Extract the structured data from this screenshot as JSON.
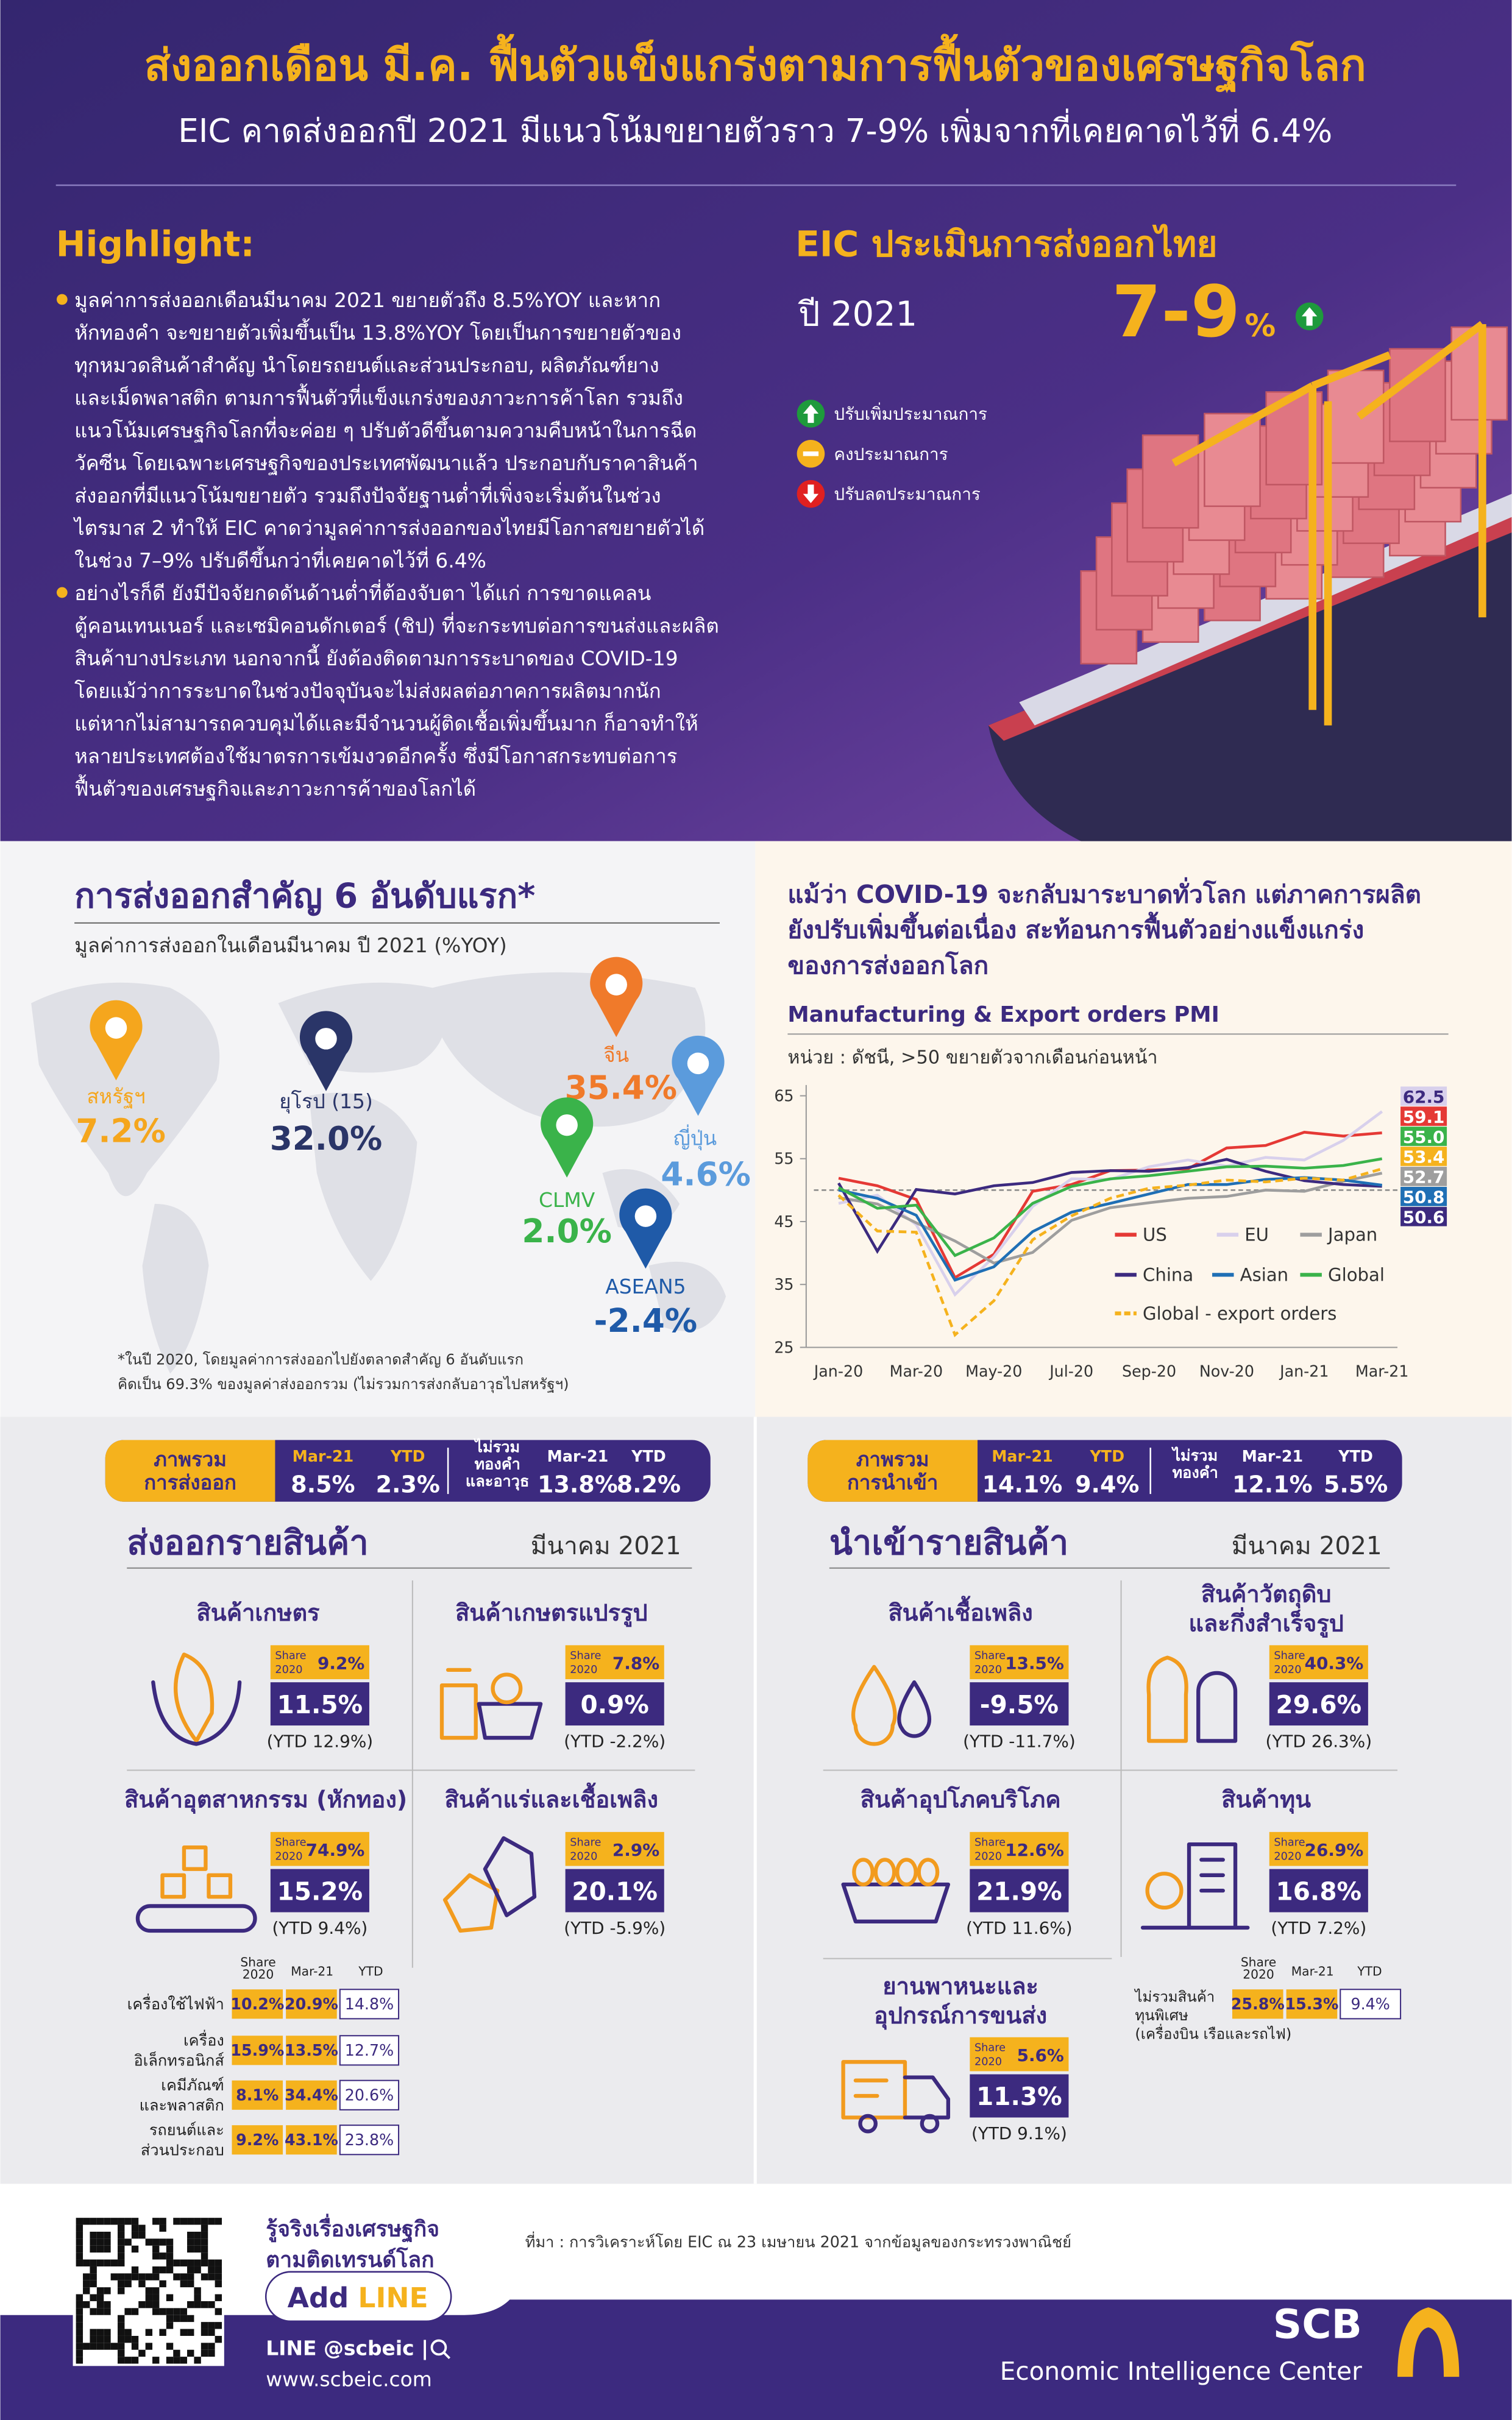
{
  "header": {
    "title": "ส่งออกเดือน มี.ค. ฟื้นตัวแข็งแกร่งตามการฟื้นตัวของเศรษฐกิจโลก",
    "subtitle": "EIC คาดส่งออกปี 2021 มีแนวโน้มขยายตัวราว 7-9% เพิ่มจากที่เคยคาดไว้ที่ 6.4%"
  },
  "highlight": {
    "heading": "Highlight:",
    "bullets": [
      [
        "มูลค่าการส่งออกเดือนมีนาคม 2021 ขยายตัวถึง 8.5%YOY และหาก",
        "หักทองคำ จะขยายตัวเพิ่มขึ้นเป็น 13.8%YOY โดยเป็นการขยายตัวของ",
        "ทุกหมวดสินค้าสำคัญ นำโดยรถยนต์และส่วนประกอบ, ผลิตภัณฑ์ยาง",
        "และเม็ดพลาสติก ตามการฟื้นตัวที่แข็งแกร่งของภาวะการค้าโลก รวมถึง",
        "แนวโน้มเศรษฐกิจโลกที่จะค่อย ๆ ปรับตัวดีขึ้นตามความคืบหน้าในการฉีด",
        "วัคซีน โดยเฉพาะเศรษฐกิจของประเทศพัฒนาแล้ว ประกอบกับราคาสินค้า",
        "ส่งออกที่มีแนวโน้มขยายตัว รวมถึงปัจจัยฐานต่ำที่เพิ่งจะเริ่มต้นในช่วง",
        "ไตรมาส 2 ทำให้ EIC คาดว่ามูลค่าการส่งออกของไทยมีโอกาสขยายตัวได้",
        "ในช่วง 7–9% ปรับดีขึ้นกว่าที่เคยคาดไว้ที่ 6.4%"
      ],
      [
        "อย่างไรก็ดี ยังมีปัจจัยกดดันด้านต่ำที่ต้องจับตา ได้แก่ การขาดแคลน",
        "ตู้คอนเทนเนอร์ และเซมิคอนดักเตอร์ (ชิป) ที่จะกระทบต่อการขนส่งและผลิต",
        "สินค้าบางประเภท นอกจากนี้ ยังต้องติดตามการระบาดของ COVID-19",
        "โดยแม้ว่าการระบาดในช่วงปัจจุบันจะไม่ส่งผลต่อภาคการผลิตมากนัก",
        "แต่หากไม่สามารถควบคุมได้และมีจำนวนผู้ติดเชื้อเพิ่มขึ้นมาก ก็อาจทำให้",
        "หลายประเทศต้องใช้มาตรการเข้มงวดอีกครั้ง ซึ่งมีโอกาสกระทบต่อการ",
        "ฟื้นตัวของเศรษฐกิจและภาวะการค้าของโลกได้"
      ]
    ]
  },
  "assessment": {
    "heading": "EIC ประเมินการส่งออกไทย",
    "year": "ปี 2021",
    "range": "7-9",
    "unit": "%",
    "legend": [
      "ปรับเพิ่มประมาณการ",
      "คงประมาณการ",
      "ปรับลดประมาณการ"
    ]
  },
  "top6": {
    "title": "การส่งออกสำคัญ 6 อันดับแรก*",
    "subtitle": "มูลค่าการส่งออกในเดือนมีนาคม ปี 2021 (%YOY)",
    "markets": [
      {
        "name": "สหรัฐฯ",
        "value": "7.2%"
      },
      {
        "name": "ยุโรป (15)",
        "value": "32.0%"
      },
      {
        "name": "จีน",
        "value": "35.4%"
      },
      {
        "name": "ญี่ปุ่น",
        "value": "4.6%"
      },
      {
        "name": "CLMV",
        "value": "2.0%"
      },
      {
        "name": "ASEAN5",
        "value": "-2.4%"
      }
    ],
    "note": [
      "*ในปี 2020, โดยมูลค่าการส่งออกไปยังตลาดสำคัญ 6 อันดับแรก",
      "คิดเป็น 69.3% ของมูลค่าส่งออกรวม (ไม่รวมการส่งกลับอาวุธไปสหรัฐฯ)"
    ]
  },
  "pmi": {
    "headline": [
      "แม้ว่า COVID-19 จะกลับมาระบาดทั่วโลก แต่ภาคการผลิต",
      "ยังปรับเพิ่มขึ้นต่อเนื่อง สะท้อนการฟื้นตัวอย่างแข็งแกร่ง",
      "ของการส่งออกโลก"
    ]
  },
  "chart_data": {
    "type": "line",
    "title": "Manufacturing & Export orders PMI",
    "subtitle": "หน่วย : ดัชนี, >50 ขยายตัวจากเดือนก่อนหน้า",
    "categories": [
      "Jan-20",
      null,
      "Mar-20",
      null,
      "May-20",
      null,
      "Jul-20",
      null,
      "Sep-20",
      null,
      "Nov-20",
      null,
      "Jan-21",
      null,
      "Mar-21"
    ],
    "ylim": [
      25,
      65
    ],
    "yticks": [
      25,
      35,
      45,
      55,
      65
    ],
    "threshold": 50,
    "series": [
      {
        "name": "US",
        "color": "#e53935",
        "values": [
          51.9,
          50.7,
          48.5,
          36.1,
          39.8,
          49.8,
          50.9,
          53.1,
          53.2,
          53.4,
          56.7,
          57.1,
          59.2,
          58.6,
          59.1
        ],
        "value_labels": [
          null,
          null,
          null,
          null,
          null,
          null,
          null,
          null,
          null,
          null,
          null,
          null,
          null,
          null,
          "59.1"
        ]
      },
      {
        "name": "EU",
        "color": "#d8d0ec",
        "values": [
          47.9,
          49.2,
          44.5,
          33.4,
          39.4,
          47.4,
          51.8,
          51.7,
          53.7,
          54.8,
          53.8,
          55.2,
          54.8,
          57.9,
          62.5
        ],
        "value_labels": [
          null,
          null,
          null,
          null,
          null,
          null,
          null,
          null,
          null,
          null,
          null,
          null,
          null,
          null,
          "62.5"
        ]
      },
      {
        "name": "Japan",
        "color": "#9e9e9e",
        "values": [
          48.8,
          47.8,
          44.8,
          41.9,
          38.4,
          40.1,
          45.2,
          47.2,
          48.0,
          48.7,
          49.0,
          50.0,
          49.8,
          51.4,
          52.7
        ],
        "value_labels": [
          null,
          null,
          null,
          null,
          null,
          null,
          null,
          null,
          null,
          null,
          null,
          null,
          null,
          null,
          "52.7"
        ]
      },
      {
        "name": "China",
        "color": "#3c2a7f",
        "values": [
          51.1,
          40.3,
          50.1,
          49.4,
          50.7,
          51.2,
          52.8,
          53.1,
          53.0,
          53.6,
          54.9,
          53.0,
          51.5,
          50.9,
          50.6
        ],
        "value_labels": [
          null,
          null,
          null,
          null,
          null,
          null,
          null,
          null,
          null,
          null,
          null,
          null,
          null,
          null,
          "50.6"
        ]
      },
      {
        "name": "Asian",
        "color": "#1f6fb5",
        "values": [
          50.0,
          48.7,
          46.0,
          35.7,
          37.8,
          43.4,
          46.5,
          47.9,
          49.4,
          50.9,
          50.9,
          51.7,
          52.0,
          51.6,
          50.8
        ],
        "value_labels": [
          null,
          null,
          null,
          null,
          null,
          null,
          null,
          null,
          null,
          null,
          null,
          null,
          null,
          null,
          "50.8"
        ]
      },
      {
        "name": "Global",
        "color": "#3ab34a",
        "values": [
          50.4,
          47.1,
          47.6,
          39.6,
          42.4,
          47.9,
          50.6,
          51.8,
          52.3,
          53.0,
          53.7,
          53.8,
          53.5,
          53.9,
          55.0
        ],
        "value_labels": [
          null,
          null,
          null,
          null,
          null,
          null,
          null,
          null,
          null,
          null,
          null,
          null,
          null,
          null,
          "55.0"
        ]
      },
      {
        "name": "Global - export orders",
        "color": "#f5b21d",
        "dashed": true,
        "values": [
          49.2,
          43.5,
          43.3,
          27.0,
          32.4,
          42.1,
          45.9,
          48.7,
          50.3,
          50.8,
          51.6,
          51.3,
          51.9,
          51.6,
          53.4
        ],
        "value_labels": [
          null,
          null,
          null,
          null,
          null,
          null,
          null,
          null,
          null,
          null,
          null,
          null,
          null,
          null,
          "53.4"
        ]
      }
    ]
  },
  "export_summary": {
    "label": [
      "ภาพรวม",
      "การส่งออก"
    ],
    "cols": [
      {
        "head": "Mar-21",
        "value": "8.5%"
      },
      {
        "head": "YTD",
        "value": "2.3%"
      }
    ],
    "excl_label": [
      "ไม่รวม",
      "ทองคำ",
      "และอาวุธ"
    ],
    "excl_cols": [
      {
        "head": "Mar-21",
        "value": "13.8%"
      },
      {
        "head": "YTD",
        "value": "8.2%"
      }
    ]
  },
  "import_summary": {
    "label": [
      "ภาพรวม",
      "การนำเข้า"
    ],
    "cols": [
      {
        "head": "Mar-21",
        "value": "14.1%"
      },
      {
        "head": "YTD",
        "value": "9.4%"
      }
    ],
    "excl_label": [
      "ไม่รวม",
      "ทองคำ"
    ],
    "excl_cols": [
      {
        "head": "Mar-21",
        "value": "12.1%"
      },
      {
        "head": "YTD",
        "value": "5.5%"
      }
    ]
  },
  "exports": {
    "title": "ส่งออกรายสินค้า",
    "period": "มีนาคม 2021",
    "share_label": "Share",
    "share_year": "2020",
    "items": [
      {
        "name": [
          "สินค้าเกษตร"
        ],
        "share": "9.2%",
        "value": "11.5%",
        "ytd": "(YTD 12.9%)"
      },
      {
        "name": [
          "สินค้าเกษตรแปรรูป"
        ],
        "share": "7.8%",
        "value": "0.9%",
        "ytd": "(YTD -2.2%)"
      },
      {
        "name": [
          "สินค้าอุตสาหกรรม (หักทอง)"
        ],
        "share": "74.9%",
        "value": "15.2%",
        "ytd": "(YTD 9.4%)"
      },
      {
        "name": [
          "สินค้าแร่และเชื้อเพลิง"
        ],
        "share": "2.9%",
        "value": "20.1%",
        "ytd": "(YTD -5.9%)"
      }
    ],
    "table": {
      "headers": [
        "Mar-21",
        "YTD"
      ],
      "rows": [
        {
          "name": [
            "เครื่องใช้ไฟฟ้า"
          ],
          "cells": [
            "10.2%",
            "20.9%",
            "14.8%"
          ]
        },
        {
          "name": [
            "เครื่อง",
            "อิเล็กทรอนิกส์"
          ],
          "cells": [
            "15.9%",
            "13.5%",
            "12.7%"
          ]
        },
        {
          "name": [
            "เคมีภัณฑ์",
            "และพลาสติก"
          ],
          "cells": [
            "8.1%",
            "34.4%",
            "20.6%"
          ]
        },
        {
          "name": [
            "รถยนต์และ",
            "ส่วนประกอบ"
          ],
          "cells": [
            "9.2%",
            "43.1%",
            "23.8%"
          ]
        }
      ]
    }
  },
  "imports": {
    "title": "นำเข้ารายสินค้า",
    "period": "มีนาคม 2021",
    "share_label": "Share",
    "share_year": "2020",
    "items": [
      {
        "name": [
          "สินค้าเชื้อเพลิง"
        ],
        "share": "13.5%",
        "value": "-9.5%",
        "ytd": "(YTD -11.7%)"
      },
      {
        "name": [
          "สินค้าวัตถุดิบ",
          "และกึ่งสำเร็จรูป"
        ],
        "share": "40.3%",
        "value": "29.6%",
        "ytd": "(YTD 26.3%)"
      },
      {
        "name": [
          "สินค้าอุปโภคบริโภค"
        ],
        "share": "12.6%",
        "value": "21.9%",
        "ytd": "(YTD 11.6%)"
      },
      {
        "name": [
          "สินค้าทุน"
        ],
        "share": "26.9%",
        "value": "16.8%",
        "ytd": "(YTD 7.2%)"
      },
      {
        "name": [
          "ยานพาหนะและ",
          "อุปกรณ์การขนส่ง"
        ],
        "share": "5.6%",
        "value": "11.3%",
        "ytd": "(YTD 9.1%)"
      }
    ],
    "table": {
      "headers": [
        "Mar-21",
        "YTD"
      ],
      "rows": [
        {
          "name": [
            "ไม่รวมสินค้า",
            "ทุนพิเศษ",
            "(เครื่องบิน เรือและรถไฟ)"
          ],
          "cells": [
            "25.8%",
            "15.3%",
            "9.4%"
          ]
        }
      ]
    }
  },
  "footer": {
    "tagline": [
      "รู้จริงเรื่องเศรษฐกิจ",
      "ตามติดเทรนด์โลก"
    ],
    "add": "Add",
    "line": "LINE",
    "handle": "LINE @scbeic |",
    "web": "www.scbeic.com",
    "source": "ที่มา : การวิเคราะห์โดย EIC ณ 23 เมษายน 2021 จากข้อมูลของกระทรวงพาณิชย์",
    "brand": "SCB",
    "brand_sub": "Economic Intelligence Center"
  }
}
